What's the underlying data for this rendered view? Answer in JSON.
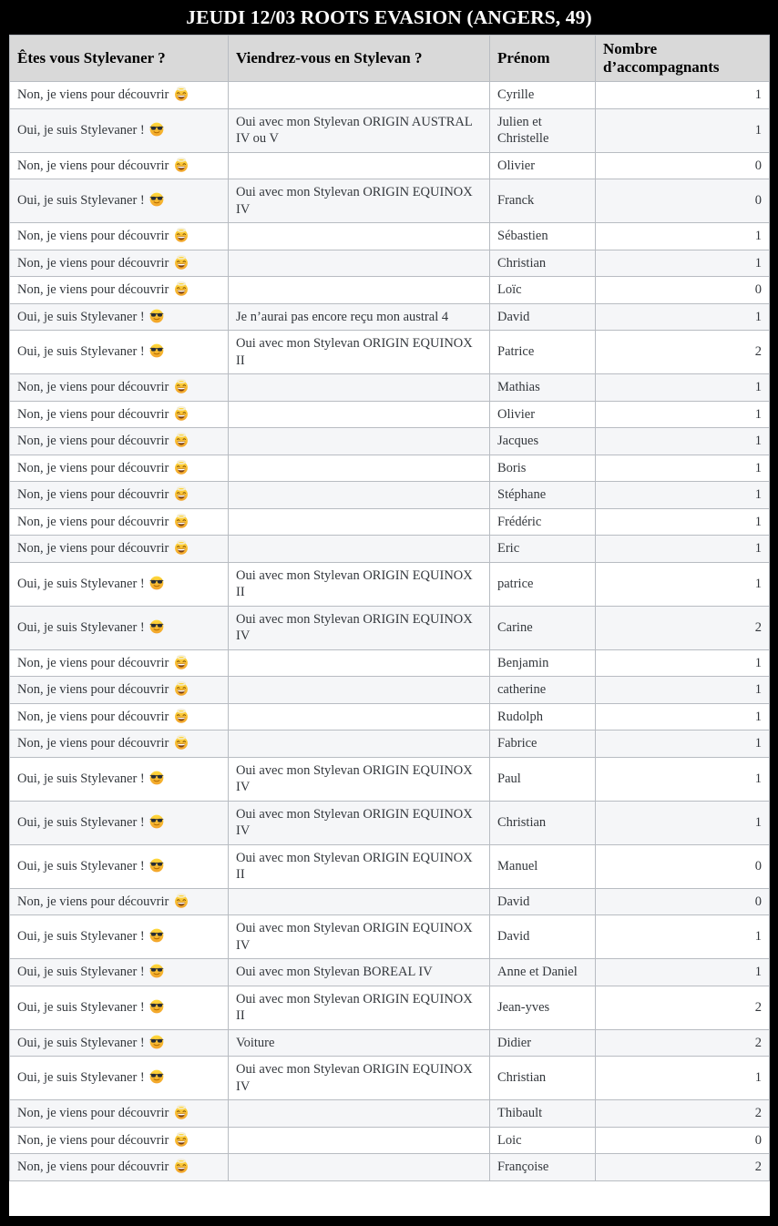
{
  "title": "JEUDI 12/03 ROOTS EVASION (ANGERS, 49)",
  "table": {
    "columns": [
      "Êtes vous Stylevaner ?",
      "Viendrez-vous en Stylevan ?",
      "Prénom",
      "Nombre d’accompagnants"
    ],
    "answers": {
      "oui": {
        "label": "Oui, je suis Stylevaner !",
        "emoji": "sunglasses-face-emoji",
        "emoji_char": "😎"
      },
      "non": {
        "label": "Non, je viens pour découvrir",
        "emoji": "smiling-face-with-halo-emoji",
        "emoji_char": "😇"
      }
    },
    "rows": [
      {
        "stylevaner": "non",
        "stylevan": "",
        "prenom": "Cyrille",
        "accompagnants": "1"
      },
      {
        "stylevaner": "oui",
        "stylevan": "Oui avec mon Stylevan ORIGIN AUSTRAL IV ou V",
        "prenom": "Julien et Christelle",
        "accompagnants": "1"
      },
      {
        "stylevaner": "non",
        "stylevan": "",
        "prenom": "Olivier",
        "accompagnants": "0"
      },
      {
        "stylevaner": "oui",
        "stylevan": "Oui avec mon Stylevan ORIGIN EQUINOX IV",
        "prenom": "Franck",
        "accompagnants": "0"
      },
      {
        "stylevaner": "non",
        "stylevan": "",
        "prenom": "Sébastien",
        "accompagnants": "1"
      },
      {
        "stylevaner": "non",
        "stylevan": "",
        "prenom": "Christian",
        "accompagnants": "1"
      },
      {
        "stylevaner": "non",
        "stylevan": "",
        "prenom": "Loïc",
        "accompagnants": "0"
      },
      {
        "stylevaner": "oui",
        "stylevan": "Je n’aurai pas encore reçu mon austral 4",
        "prenom": "David",
        "accompagnants": "1"
      },
      {
        "stylevaner": "oui",
        "stylevan": "Oui avec mon Stylevan ORIGIN EQUINOX II",
        "prenom": "Patrice",
        "accompagnants": "2"
      },
      {
        "stylevaner": "non",
        "stylevan": "",
        "prenom": "Mathias",
        "accompagnants": "1"
      },
      {
        "stylevaner": "non",
        "stylevan": "",
        "prenom": "Olivier",
        "accompagnants": "1"
      },
      {
        "stylevaner": "non",
        "stylevan": "",
        "prenom": "Jacques",
        "accompagnants": "1"
      },
      {
        "stylevaner": "non",
        "stylevan": "",
        "prenom": "Boris",
        "accompagnants": "1"
      },
      {
        "stylevaner": "non",
        "stylevan": "",
        "prenom": "Stéphane",
        "accompagnants": "1"
      },
      {
        "stylevaner": "non",
        "stylevan": "",
        "prenom": "Frédéric",
        "accompagnants": "1"
      },
      {
        "stylevaner": "non",
        "stylevan": "",
        "prenom": "Eric",
        "accompagnants": "1"
      },
      {
        "stylevaner": "oui",
        "stylevan": "Oui avec mon Stylevan ORIGIN EQUINOX II",
        "prenom": "patrice",
        "accompagnants": "1"
      },
      {
        "stylevaner": "oui",
        "stylevan": "Oui avec mon Stylevan ORIGIN EQUINOX IV",
        "prenom": "Carine",
        "accompagnants": "2"
      },
      {
        "stylevaner": "non",
        "stylevan": "",
        "prenom": "Benjamin",
        "accompagnants": "1"
      },
      {
        "stylevaner": "non",
        "stylevan": "",
        "prenom": "catherine",
        "accompagnants": "1"
      },
      {
        "stylevaner": "non",
        "stylevan": "",
        "prenom": "Rudolph",
        "accompagnants": "1"
      },
      {
        "stylevaner": "non",
        "stylevan": "",
        "prenom": "Fabrice",
        "accompagnants": "1"
      },
      {
        "stylevaner": "oui",
        "stylevan": "Oui avec mon Stylevan ORIGIN EQUINOX IV",
        "prenom": "Paul",
        "accompagnants": "1"
      },
      {
        "stylevaner": "oui",
        "stylevan": "Oui avec mon Stylevan ORIGIN EQUINOX IV",
        "prenom": "Christian",
        "accompagnants": "1"
      },
      {
        "stylevaner": "oui",
        "stylevan": "Oui avec mon Stylevan ORIGIN EQUINOX II",
        "prenom": "Manuel",
        "accompagnants": "0"
      },
      {
        "stylevaner": "non",
        "stylevan": "",
        "prenom": "David",
        "accompagnants": "0"
      },
      {
        "stylevaner": "oui",
        "stylevan": "Oui avec mon Stylevan ORIGIN EQUINOX IV",
        "prenom": "David",
        "accompagnants": "1"
      },
      {
        "stylevaner": "oui",
        "stylevan": "Oui avec mon Stylevan BOREAL IV",
        "prenom": "Anne et Daniel",
        "accompagnants": "1"
      },
      {
        "stylevaner": "oui",
        "stylevan": "Oui avec mon Stylevan ORIGIN EQUINOX II",
        "prenom": "Jean-yves",
        "accompagnants": "2"
      },
      {
        "stylevaner": "oui",
        "stylevan": "Voiture",
        "prenom": "Didier",
        "accompagnants": "2"
      },
      {
        "stylevaner": "oui",
        "stylevan": "Oui avec mon Stylevan ORIGIN EQUINOX IV",
        "prenom": "Christian",
        "accompagnants": "1"
      },
      {
        "stylevaner": "non",
        "stylevan": "",
        "prenom": "Thibault",
        "accompagnants": "2"
      },
      {
        "stylevaner": "non",
        "stylevan": "",
        "prenom": "Loic",
        "accompagnants": "0"
      },
      {
        "stylevaner": "non",
        "stylevan": "",
        "prenom": "Françoise",
        "accompagnants": "2"
      }
    ]
  },
  "colors": {
    "frame": "#000000",
    "title_text": "#ffffff",
    "header_bg": "#d9d9d9",
    "row_stripe": "#f5f6f8",
    "border": "#b8bcc2",
    "body_text": "#33373c"
  }
}
